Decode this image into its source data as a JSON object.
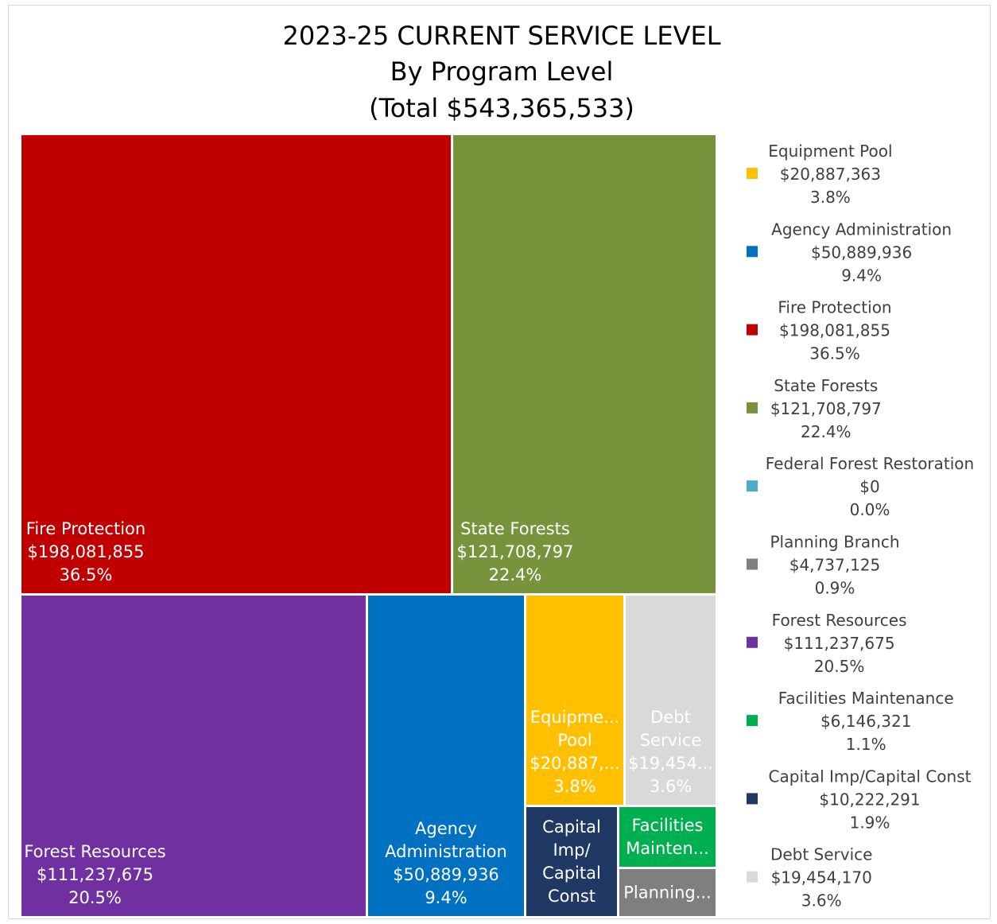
{
  "chart_data": {
    "type": "treemap",
    "title_lines": [
      "2023-25 CURRENT SERVICE LEVEL",
      "By Program Level",
      "(Total $543,365,533)"
    ],
    "total": 543365533,
    "tiles": [
      {
        "name": "Fire Protection",
        "value": 198081855,
        "value_label": "$198,081,855",
        "pct": "36.5%",
        "color": "#C00000",
        "label_lines": [
          "Fire Protection",
          "$198,081,855",
          "36.5%"
        ]
      },
      {
        "name": "State Forests",
        "value": 121708797,
        "value_label": "$121,708,797",
        "pct": "22.4%",
        "color": "#77933C",
        "label_lines": [
          "State Forests",
          "$121,708,797",
          "22.4%"
        ]
      },
      {
        "name": "Forest Resources",
        "value": 111237675,
        "value_label": "$111,237,675",
        "pct": "20.5%",
        "color": "#7030A0",
        "label_lines": [
          "Forest Resources",
          "$111,237,675",
          "20.5%"
        ]
      },
      {
        "name": "Agency Administration",
        "value": 50889936,
        "value_label": "$50,889,936",
        "pct": "9.4%",
        "color": "#0070C0",
        "label_lines": [
          "Agency",
          "Administration",
          "$50,889,936",
          "9.4%"
        ]
      },
      {
        "name": "Equipment Pool",
        "value": 20887363,
        "value_label": "$20,887,363",
        "pct": "3.8%",
        "color": "#FFC000",
        "label_lines": [
          "Equipme...",
          "Pool",
          "$20,887,...",
          "3.8%"
        ]
      },
      {
        "name": "Debt Service",
        "value": 19454170,
        "value_label": "$19,454,170",
        "pct": "3.6%",
        "color": "#D9D9D9",
        "label_lines": [
          "Debt",
          "Service",
          "$19,454...",
          "3.6%"
        ]
      },
      {
        "name": "Capital Imp/Capital Const",
        "value": 10222291,
        "value_label": "$10,222,291",
        "pct": "1.9%",
        "color": "#1F3864",
        "label_lines": [
          "Capital",
          "Imp/",
          "Capital",
          "Const"
        ]
      },
      {
        "name": "Facilities Maintenance",
        "value": 6146321,
        "value_label": "$6,146,321",
        "pct": "1.1%",
        "color": "#00B050",
        "label_lines": [
          "Facilities",
          "Mainten..."
        ]
      },
      {
        "name": "Planning Branch",
        "value": 4737125,
        "value_label": "$4,737,125",
        "pct": "0.9%",
        "color": "#7F7F7F",
        "label_lines": [
          "Planning..."
        ]
      },
      {
        "name": "Federal Forest Restoration",
        "value": 0,
        "value_label": "$0",
        "pct": "0.0%",
        "color": "#4BACC6",
        "label_lines": []
      }
    ],
    "legend_order": [
      "Equipment Pool",
      "Agency Administration",
      "Fire Protection",
      "State Forests",
      "Federal Forest Restoration",
      "Planning Branch",
      "Forest Resources",
      "Facilities Maintenance",
      "Capital Imp/Capital Const",
      "Debt Service"
    ],
    "legend_position": "right"
  }
}
